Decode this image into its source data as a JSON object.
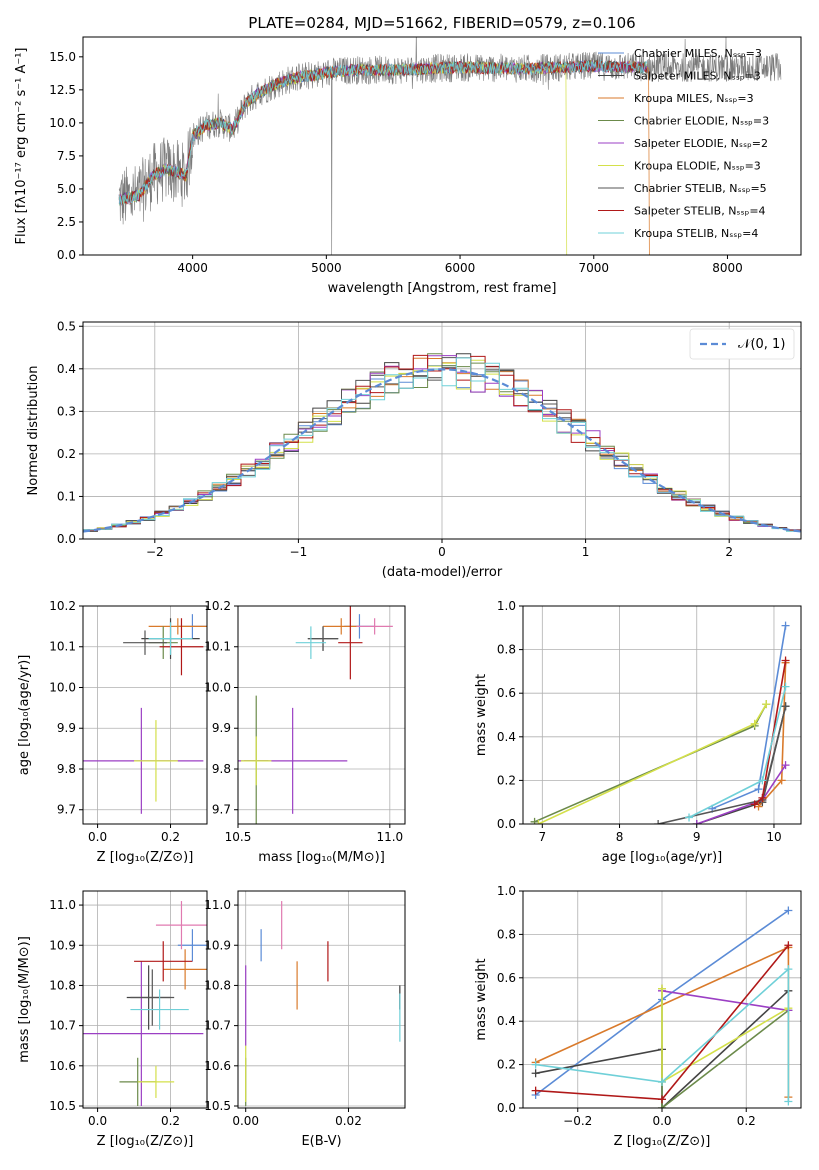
{
  "chart_data": [
    {
      "type": "line",
      "id": "spectrum",
      "title": "PLATE=0284, MJD=51662, FIBERID=0579, z=0.106",
      "xlabel": "wavelength [Angstrom, rest frame]",
      "ylabel": "Flux [fλ10⁻¹⁷ erg cm⁻² s⁻¹ A⁻¹]",
      "xlim": [
        3180,
        8550
      ],
      "ylim": [
        0,
        16.5
      ],
      "xticks": [
        "4000",
        "5000",
        "6000",
        "7000",
        "8000"
      ],
      "yticks": [
        "0.0",
        "2.5",
        "5.0",
        "7.5",
        "10.0",
        "12.5",
        "15.0"
      ],
      "legend_position": "top-right",
      "series": [
        {
          "name": "Chabrier MILES, Nₛₛₚ=3",
          "color": "#5b8bd6"
        },
        {
          "name": "Salpeter MILES, Nₛₛₚ=3",
          "color": "#444444"
        },
        {
          "name": "Kroupa MILES, Nₛₛₚ=3",
          "color": "#d97a2b"
        },
        {
          "name": "Chabrier ELODIE, Nₛₛₚ=3",
          "color": "#6b8a4a"
        },
        {
          "name": "Salpeter ELODIE, Nₛₛₚ=2",
          "color": "#9b3fc4"
        },
        {
          "name": "Kroupa ELODIE, Nₛₛₚ=3",
          "color": "#d4e04a"
        },
        {
          "name": "Chabrier STELIB, Nₛₛₚ=5",
          "color": "#555555"
        },
        {
          "name": "Salpeter STELIB, Nₛₛₚ=4",
          "color": "#b01818"
        },
        {
          "name": "Kroupa STELIB, Nₛₛₚ=4",
          "color": "#6fd0d8"
        }
      ],
      "model_trend": {
        "x": [
          3450,
          3600,
          3700,
          3800,
          3900,
          3950,
          4000,
          4100,
          4200,
          4300,
          4400,
          4500,
          4600,
          4700,
          4800,
          4900,
          5000,
          5200,
          5500,
          6000,
          6500,
          7000,
          7400
        ],
        "y": [
          4.2,
          4.5,
          6.0,
          6.5,
          6.2,
          6.0,
          9.0,
          9.8,
          10.0,
          9.5,
          11.5,
          12.3,
          12.8,
          13.2,
          13.5,
          13.6,
          13.8,
          14.0,
          14.0,
          14.2,
          14.1,
          14.3,
          14.2
        ]
      }
    },
    {
      "type": "bar",
      "id": "residuals",
      "xlabel": "(data-model)/error",
      "ylabel": "Normed distribution",
      "xlim": [
        -2.5,
        2.5
      ],
      "ylim": [
        0,
        0.51
      ],
      "xticks": [
        "−2",
        "−1",
        "0",
        "1",
        "2"
      ],
      "yticks": [
        "0.0",
        "0.1",
        "0.2",
        "0.3",
        "0.4",
        "0.5"
      ],
      "legend": "𝒩(0, 1)",
      "legend_position": "top-right",
      "gaussian": {
        "mu": 0,
        "sigma": 1,
        "color": "#5b8bd6"
      },
      "bin_width": 0.1
    },
    {
      "type": "scatter",
      "id": "age-vs-Z",
      "xlabel": "Z [log₁₀(Z/Z⊙)]",
      "ylabel": "age  [log₁₀(age/yr)]",
      "xlim": [
        -0.04,
        0.3
      ],
      "ylim": [
        9.665,
        10.2
      ],
      "xticks": [
        "0.0",
        "0.2"
      ],
      "yticks": [
        "9.7",
        "9.8",
        "9.9",
        "10.0",
        "10.1",
        "10.2"
      ],
      "points": [
        {
          "x": 0.26,
          "y": 10.15,
          "dx": 0.04,
          "dy": 0.03,
          "color": "#5b8bd6"
        },
        {
          "x": 0.2,
          "y": 10.12,
          "dx": 0.08,
          "dy": 0.05,
          "color": "#444444"
        },
        {
          "x": 0.22,
          "y": 10.15,
          "dx": 0.08,
          "dy": 0.02,
          "color": "#d97a2b"
        },
        {
          "x": 0.18,
          "y": 10.11,
          "dx": 0.04,
          "dy": 0.04,
          "color": "#6b8a4a"
        },
        {
          "x": 0.12,
          "y": 9.82,
          "dx": 0.17,
          "dy": 0.13,
          "color": "#9b3fc4"
        },
        {
          "x": 0.16,
          "y": 9.82,
          "dx": 0.06,
          "dy": 0.1,
          "color": "#d4e04a"
        },
        {
          "x": 0.13,
          "y": 10.11,
          "dx": 0.06,
          "dy": 0.03,
          "color": "#555555"
        },
        {
          "x": 0.23,
          "y": 10.1,
          "dx": 0.06,
          "dy": 0.07,
          "color": "#b01818"
        },
        {
          "x": 0.2,
          "y": 10.12,
          "dx": 0.06,
          "dy": 0.04,
          "color": "#6fd0d8"
        }
      ]
    },
    {
      "type": "scatter",
      "id": "age-vs-mass",
      "xlabel": "mass [log₁₀(M/M⊙)]",
      "ylabel": "",
      "xlim": [
        10.5,
        11.05
      ],
      "ylim": [
        9.665,
        10.2
      ],
      "xticks": [
        "10.5",
        "11.0"
      ],
      "yticks": [
        "9.7",
        "9.8",
        "9.9",
        "10.0",
        "10.1",
        "10.2"
      ],
      "points": [
        {
          "x": 10.9,
          "y": 10.15,
          "dx": 0.05,
          "dy": 0.03,
          "color": "#5b8bd6"
        },
        {
          "x": 10.78,
          "y": 10.12,
          "dx": 0.05,
          "dy": 0.03,
          "color": "#444444"
        },
        {
          "x": 10.84,
          "y": 10.15,
          "dx": 0.06,
          "dy": 0.02,
          "color": "#d97a2b"
        },
        {
          "x": 10.56,
          "y": 9.82,
          "dx": 0.04,
          "dy": 0.16,
          "color": "#6b8a4a"
        },
        {
          "x": 10.68,
          "y": 9.82,
          "dx": 0.18,
          "dy": 0.13,
          "color": "#9b3fc4"
        },
        {
          "x": 10.56,
          "y": 9.82,
          "dx": 0.05,
          "dy": 0.06,
          "color": "#d4e04a"
        },
        {
          "x": 10.78,
          "y": 10.12,
          "dx": 0.05,
          "dy": 0.03,
          "color": "#555555"
        },
        {
          "x": 10.87,
          "y": 10.11,
          "dx": 0.04,
          "dy": 0.09,
          "color": "#b01818"
        },
        {
          "x": 10.74,
          "y": 10.11,
          "dx": 0.05,
          "dy": 0.04,
          "color": "#6fd0d8"
        },
        {
          "x": 10.95,
          "y": 10.15,
          "dx": 0.06,
          "dy": 0.02,
          "color": "#e07ab0"
        }
      ]
    },
    {
      "type": "line",
      "id": "weight-vs-age",
      "xlabel": "age  [log₁₀(age/yr)]",
      "ylabel": "mass weight",
      "xlim": [
        6.75,
        10.35
      ],
      "ylim": [
        0,
        1.0
      ],
      "xticks": [
        "7",
        "8",
        "9",
        "10"
      ],
      "yticks": [
        "0.0",
        "0.2",
        "0.4",
        "0.6",
        "0.8",
        "1.0"
      ],
      "series": [
        {
          "color": "#5b8bd6",
          "x": [
            9.2,
            9.8,
            10.15
          ],
          "y": [
            0.07,
            0.16,
            0.91
          ]
        },
        {
          "color": "#444444",
          "x": [
            9.0,
            9.85,
            10.15
          ],
          "y": [
            0.0,
            0.1,
            0.54
          ]
        },
        {
          "color": "#d97a2b",
          "x": [
            9.8,
            10.1,
            10.15
          ],
          "y": [
            0.08,
            0.2,
            0.74
          ]
        },
        {
          "color": "#6b8a4a",
          "x": [
            6.9,
            9.75,
            9.9
          ],
          "y": [
            0.01,
            0.45,
            0.55
          ]
        },
        {
          "color": "#9b3fc4",
          "x": [
            9.0,
            9.85,
            10.15
          ],
          "y": [
            0.0,
            0.11,
            0.27
          ]
        },
        {
          "color": "#d4e04a",
          "x": [
            6.95,
            9.75,
            9.9
          ],
          "y": [
            0.0,
            0.46,
            0.55
          ]
        },
        {
          "color": "#555555",
          "x": [
            8.5,
            9.85,
            10.15
          ],
          "y": [
            0.0,
            0.11,
            0.54
          ]
        },
        {
          "color": "#b01818",
          "x": [
            9.75,
            9.85,
            10.15
          ],
          "y": [
            0.09,
            0.12,
            0.75
          ]
        },
        {
          "color": "#6fd0d8",
          "x": [
            8.9,
            9.85,
            10.15
          ],
          "y": [
            0.03,
            0.2,
            0.63
          ]
        }
      ]
    },
    {
      "type": "scatter",
      "id": "mass-vs-Z",
      "xlabel": "Z [log₁₀(Z/Z⊙)]",
      "ylabel": "mass [log₁₀(M/M⊙)]",
      "xlim": [
        -0.04,
        0.3
      ],
      "ylim": [
        10.495,
        11.035
      ],
      "xticks": [
        "0.0",
        "0.2"
      ],
      "yticks": [
        "10.5",
        "10.6",
        "10.7",
        "10.8",
        "10.9",
        "11.0"
      ],
      "points": [
        {
          "x": 0.26,
          "y": 10.9,
          "dx": 0.04,
          "dy": 0.04,
          "color": "#5b8bd6"
        },
        {
          "x": 0.14,
          "y": 10.77,
          "dx": 0.06,
          "dy": 0.08,
          "color": "#444444"
        },
        {
          "x": 0.24,
          "y": 10.84,
          "dx": 0.06,
          "dy": 0.05,
          "color": "#d97a2b"
        },
        {
          "x": 0.11,
          "y": 10.56,
          "dx": 0.05,
          "dy": 0.06,
          "color": "#6b8a4a"
        },
        {
          "x": 0.12,
          "y": 10.68,
          "dx": 0.17,
          "dy": 0.18,
          "color": "#9b3fc4"
        },
        {
          "x": 0.16,
          "y": 10.56,
          "dx": 0.05,
          "dy": 0.04,
          "color": "#d4e04a"
        },
        {
          "x": 0.15,
          "y": 10.77,
          "dx": 0.06,
          "dy": 0.07,
          "color": "#555555"
        },
        {
          "x": 0.18,
          "y": 10.86,
          "dx": 0.08,
          "dy": 0.05,
          "color": "#b01818"
        },
        {
          "x": 0.17,
          "y": 10.74,
          "dx": 0.08,
          "dy": 0.05,
          "color": "#6fd0d8"
        },
        {
          "x": 0.23,
          "y": 10.95,
          "dx": 0.07,
          "dy": 0.06,
          "color": "#e07ab0"
        }
      ]
    },
    {
      "type": "scatter",
      "id": "mass-vs-EBV",
      "xlabel": "E(B-V)",
      "ylabel": "",
      "xlim": [
        -0.0015,
        0.031
      ],
      "ylim": [
        10.495,
        11.035
      ],
      "xticks": [
        "0.00",
        "0.02"
      ],
      "yticks": [
        "10.5",
        "10.6",
        "10.7",
        "10.8",
        "10.9",
        "11.0"
      ],
      "points": [
        {
          "x": 0.003,
          "y": 10.9,
          "dx": 0,
          "dy": 0.04,
          "color": "#5b8bd6"
        },
        {
          "x": 0.03,
          "y": 10.77,
          "dx": 0,
          "dy": 0.03,
          "color": "#444444"
        },
        {
          "x": 0.01,
          "y": 10.8,
          "dx": 0,
          "dy": 0.06,
          "color": "#d97a2b"
        },
        {
          "x": 0.0,
          "y": 10.56,
          "dx": 0,
          "dy": 0.06,
          "color": "#6b8a4a"
        },
        {
          "x": 0.0,
          "y": 10.75,
          "dx": 0,
          "dy": 0.1,
          "color": "#9b3fc4"
        },
        {
          "x": 0.0,
          "y": 10.58,
          "dx": 0,
          "dy": 0.07,
          "color": "#d4e04a"
        },
        {
          "x": 0.03,
          "y": 10.77,
          "dx": 0,
          "dy": 0.03,
          "color": "#555555"
        },
        {
          "x": 0.016,
          "y": 10.86,
          "dx": 0,
          "dy": 0.05,
          "color": "#b01818"
        },
        {
          "x": 0.03,
          "y": 10.72,
          "dx": 0,
          "dy": 0.06,
          "color": "#6fd0d8"
        },
        {
          "x": 0.007,
          "y": 10.95,
          "dx": 0,
          "dy": 0.06,
          "color": "#e07ab0"
        }
      ]
    },
    {
      "type": "line",
      "id": "weight-vs-Z",
      "xlabel": "Z [log₁₀(Z/Z⊙)]",
      "ylabel": "mass weight",
      "xlim": [
        -0.33,
        0.33
      ],
      "ylim": [
        0,
        1.0
      ],
      "xticks": [
        "−0.2",
        "0.0",
        "0.2"
      ],
      "yticks": [
        "0.0",
        "0.2",
        "0.4",
        "0.6",
        "0.8",
        "1.0"
      ],
      "series": [
        {
          "color": "#5b8bd6",
          "x": [
            -0.3,
            0.0,
            0.3
          ],
          "y": [
            0.06,
            0.5,
            0.91
          ]
        },
        {
          "color": "#444444",
          "x": [
            -0.3,
            0.0,
            0.0,
            0.3
          ],
          "y": [
            0.16,
            0.27,
            0.0,
            0.54
          ]
        },
        {
          "color": "#d97a2b",
          "x": [
            -0.3,
            0.3,
            0.3
          ],
          "y": [
            0.21,
            0.74,
            0.05
          ]
        },
        {
          "color": "#6b8a4a",
          "x": [
            0.0,
            0.0,
            0.3
          ],
          "y": [
            0.55,
            0.0,
            0.45
          ]
        },
        {
          "color": "#9b3fc4",
          "x": [
            0.0,
            0.3
          ],
          "y": [
            0.54,
            0.45
          ]
        },
        {
          "color": "#d4e04a",
          "x": [
            0.0,
            0.0,
            0.3
          ],
          "y": [
            0.55,
            0.12,
            0.46
          ]
        },
        {
          "color": "#b01818",
          "x": [
            -0.3,
            0.0,
            0.3
          ],
          "y": [
            0.08,
            0.04,
            0.75
          ]
        },
        {
          "color": "#6fd0d8",
          "x": [
            -0.3,
            0.0,
            0.3,
            0.3
          ],
          "y": [
            0.2,
            0.12,
            0.64,
            0.03
          ]
        }
      ]
    }
  ]
}
